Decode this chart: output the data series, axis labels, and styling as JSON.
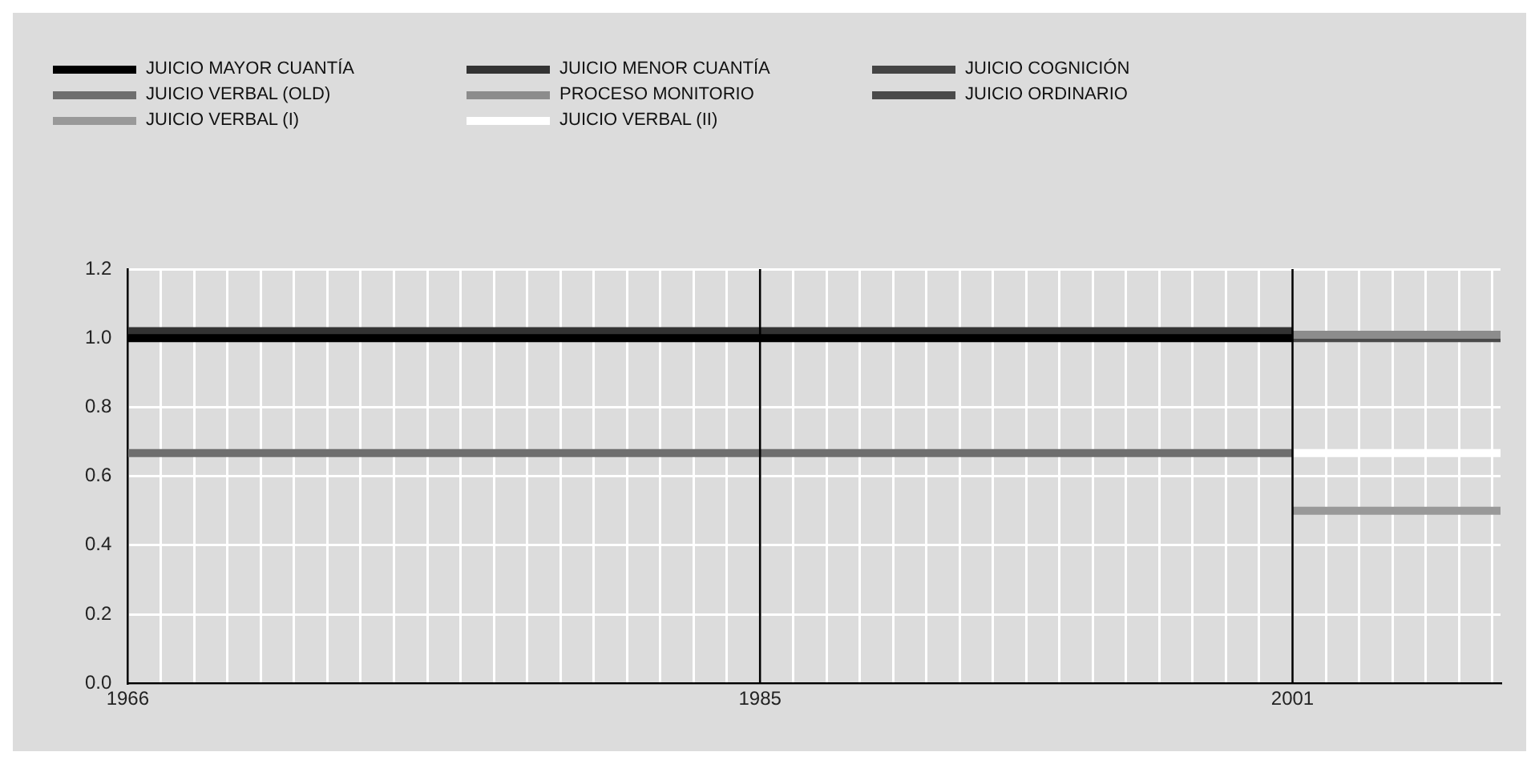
{
  "chart_data": {
    "type": "line",
    "xlim": [
      1966,
      2007.25
    ],
    "xticks": [
      1966,
      {
        "value": 1967,
        "label": null
      },
      {
        "value": 1968,
        "label": null
      },
      {
        "value": 1969,
        "label": null
      },
      {
        "value": 1970,
        "label": null
      },
      {
        "value": 1971,
        "label": null
      },
      {
        "value": 1972,
        "label": null
      },
      {
        "value": 1973,
        "label": null
      },
      {
        "value": 1974,
        "label": null
      },
      {
        "value": 1975,
        "label": null
      },
      {
        "value": 1976,
        "label": null
      },
      {
        "value": 1977,
        "label": null
      },
      {
        "value": 1978,
        "label": null
      },
      {
        "value": 1979,
        "label": null
      },
      {
        "value": 1980,
        "label": null
      },
      {
        "value": 1981,
        "label": null
      },
      {
        "value": 1982,
        "label": null
      },
      {
        "value": 1983,
        "label": null
      },
      {
        "value": 1984,
        "label": null
      },
      1985,
      {
        "value": 1986,
        "label": null
      },
      {
        "value": 1987,
        "label": null
      },
      {
        "value": 1988,
        "label": null
      },
      {
        "value": 1989,
        "label": null
      },
      {
        "value": 1990,
        "label": null
      },
      {
        "value": 1991,
        "label": null
      },
      {
        "value": 1992,
        "label": null
      },
      {
        "value": 1993,
        "label": null
      },
      {
        "value": 1994,
        "label": null
      },
      {
        "value": 1995,
        "label": null
      },
      {
        "value": 1996,
        "label": null
      },
      {
        "value": 1997,
        "label": null
      },
      {
        "value": 1998,
        "label": null
      },
      {
        "value": 1999,
        "label": null
      },
      {
        "value": 2000,
        "label": null
      },
      2001,
      {
        "value": 2002,
        "label": null
      },
      {
        "value": 2003,
        "label": null
      },
      {
        "value": 2004,
        "label": null
      },
      {
        "value": 2005,
        "label": null
      },
      {
        "value": 2006,
        "label": null
      },
      {
        "value": 2007,
        "label": null
      }
    ],
    "ylim": [
      0,
      1.2
    ],
    "yticks": [
      {
        "value": 0,
        "label": "0.0"
      },
      0.2,
      0.4,
      0.6,
      0.8,
      {
        "value": 1,
        "label": "1.0"
      },
      1.2
    ],
    "grid": true,
    "legend": "top",
    "marker": "none",
    "line_style": "solid",
    "ref_lines": [
      {
        "axis": "x",
        "value": 1985,
        "color": "#000000"
      },
      {
        "axis": "x",
        "value": 2001,
        "color": "#000000"
      }
    ],
    "series": [
      {
        "name": "JUICIO MAYOR CUANTÍA",
        "color": "#000000",
        "x": [
          1966,
          2001
        ],
        "values": [
          1.0,
          1.0
        ]
      },
      {
        "name": "JUICIO MENOR CUANTÍA",
        "color": "#333333",
        "x": [
          1966,
          2001
        ],
        "values": [
          1.02,
          1.02
        ]
      },
      {
        "name": "JUICIO COGNICIÓN",
        "color": "#444444"
      },
      {
        "name": "JUICIO VERBAL (OLD)",
        "color": "#6e6e6e",
        "x": [
          1966,
          2001
        ],
        "values": [
          0.667,
          0.667
        ]
      },
      {
        "name": "PROCESO MONITORIO",
        "color": "#8c8c8c",
        "x": [
          2001,
          2007.25
        ],
        "values": [
          1.01,
          1.01
        ]
      },
      {
        "name": "JUICIO ORDINARIO",
        "color": "#4a4a4a",
        "x": [
          2001,
          2007.25
        ],
        "values": [
          1.0,
          1.0
        ]
      },
      {
        "name": "JUICIO VERBAL (I)",
        "color": "#999999",
        "x": [
          2001,
          2007.25
        ],
        "values": [
          0.5,
          0.5
        ]
      },
      {
        "name": "JUICIO VERBAL (II)",
        "color": "#ffffff",
        "x": [
          2001,
          2007.25
        ],
        "values": [
          0.667,
          0.667
        ]
      }
    ]
  }
}
